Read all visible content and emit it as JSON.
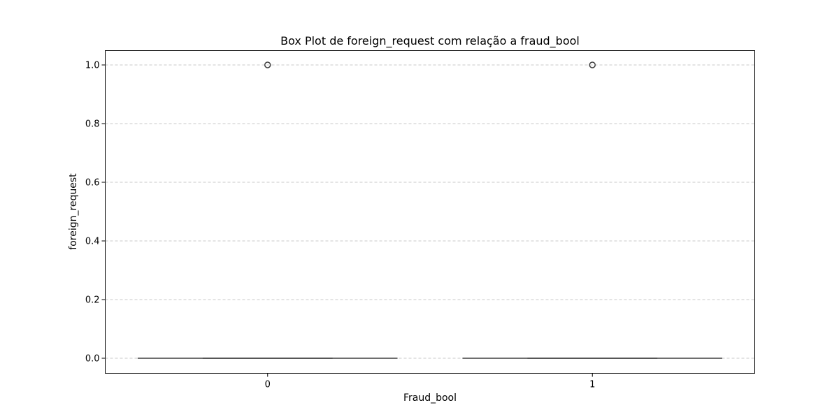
{
  "chart_data": {
    "type": "box",
    "title": "Box Plot de foreign_request com relação a fraud_bool",
    "xlabel": "Fraud_bool",
    "ylabel": "foreign_request",
    "categories": [
      "0",
      "1"
    ],
    "ylim": [
      -0.05,
      1.05
    ],
    "yticks": [
      0.0,
      0.2,
      0.4,
      0.6,
      0.8,
      1.0
    ],
    "ytick_labels": [
      "0.0",
      "0.2",
      "0.4",
      "0.6",
      "0.8",
      "1.0"
    ],
    "grid": "y",
    "boxes": [
      {
        "category": "0",
        "whisker_low": 0.0,
        "q1": 0.0,
        "median": 0.0,
        "q3": 0.0,
        "whisker_high": 0.0,
        "outliers": [
          1.0
        ]
      },
      {
        "category": "1",
        "whisker_low": 0.0,
        "q1": 0.0,
        "median": 0.0,
        "q3": 0.0,
        "whisker_high": 0.0,
        "outliers": [
          1.0
        ]
      }
    ],
    "colors": {
      "box": "#3f3f3f",
      "grid": "#c8c8c8"
    }
  }
}
